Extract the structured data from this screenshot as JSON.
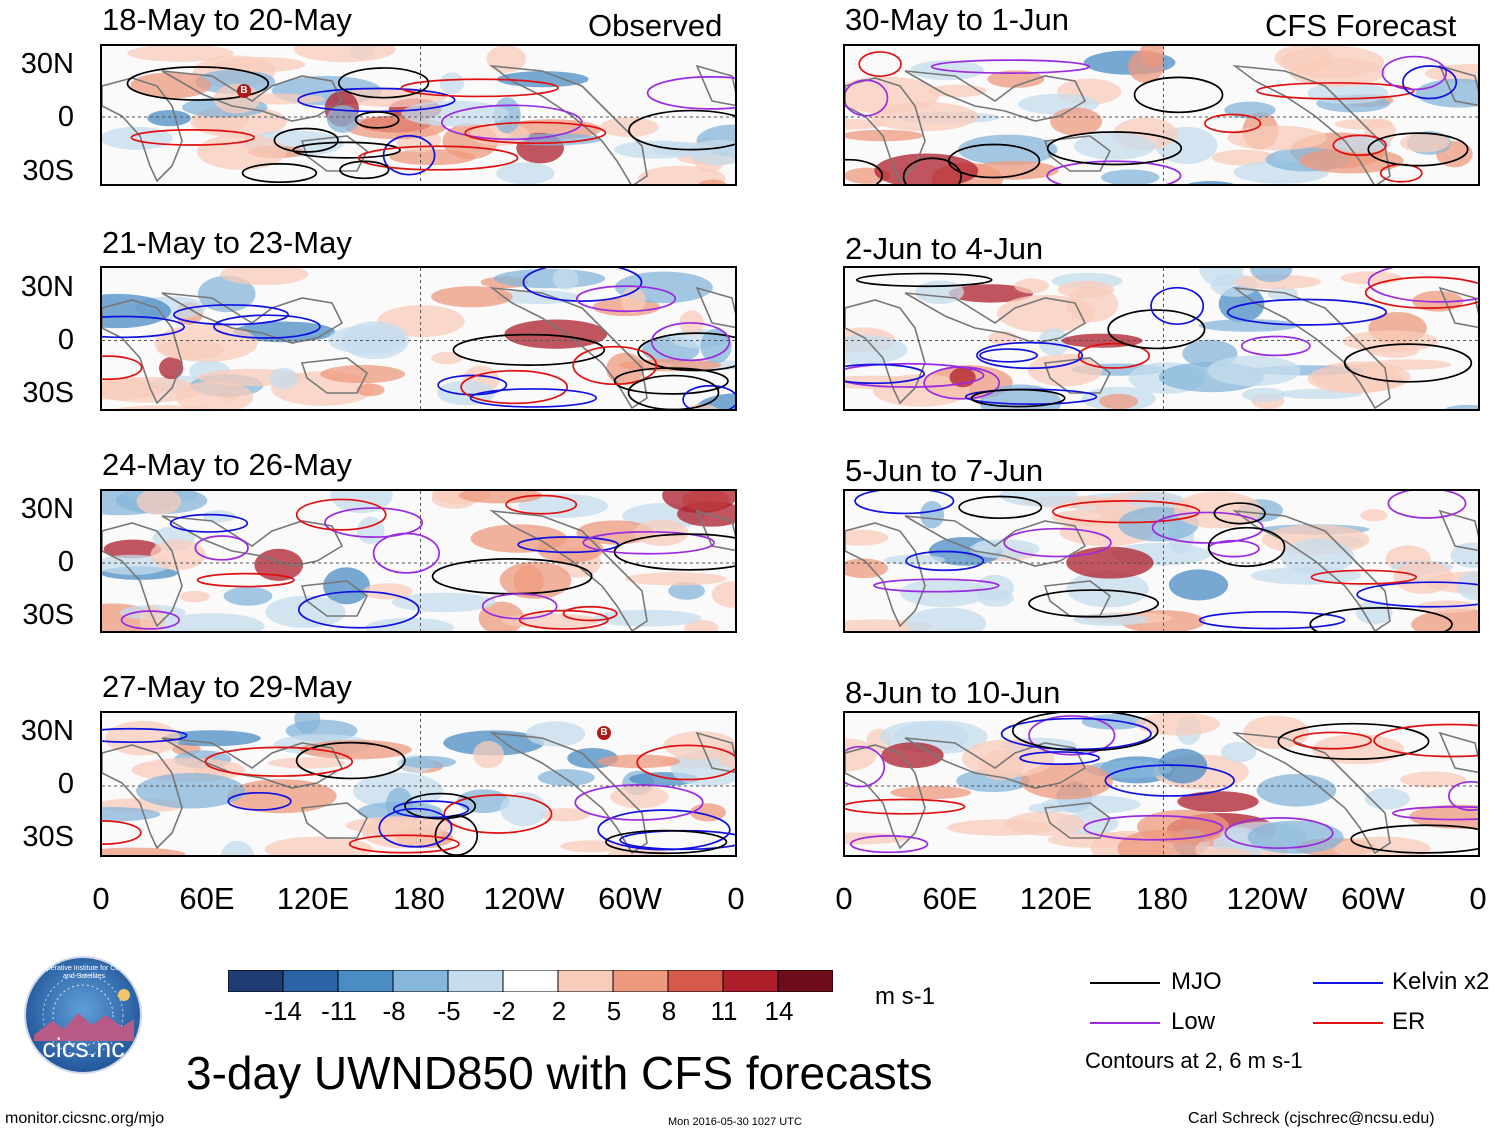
{
  "headers": {
    "left": "Observed",
    "right": "CFS Forecast"
  },
  "panels": [
    {
      "title": "18-May to 20-May"
    },
    {
      "title": "21-May to 23-May"
    },
    {
      "title": "24-May to 26-May"
    },
    {
      "title": "27-May to 29-May"
    },
    {
      "title": "30-May to 1-Jun"
    },
    {
      "title": "2-Jun to 4-Jun"
    },
    {
      "title": "5-Jun to 7-Jun"
    },
    {
      "title": "8-Jun to 10-Jun"
    }
  ],
  "lat_labels": [
    "30N",
    "0",
    "30S"
  ],
  "lon_labels": [
    "0",
    "60E",
    "120E",
    "180",
    "120W",
    "60W",
    "0"
  ],
  "colorbar": {
    "ticks": [
      "-14",
      "-11",
      "-8",
      "-5",
      "-2",
      "2",
      "5",
      "8",
      "11",
      "14"
    ],
    "colors": [
      "#1f3d73",
      "#2a64a6",
      "#4a8cc4",
      "#86b6da",
      "#c5dcee",
      "#ffffff",
      "#f8ccbb",
      "#ee9a7e",
      "#d65a4a",
      "#ad1e2b",
      "#6d0d1c"
    ],
    "units": "m s-1"
  },
  "legend": {
    "items": [
      {
        "label": "MJO",
        "color": "#000000"
      },
      {
        "label": "Kelvin x2",
        "color": "#1010e0"
      },
      {
        "label": "Low",
        "color": "#9a2be0"
      },
      {
        "label": "ER",
        "color": "#e01010"
      }
    ],
    "note": "Contours at 2, 6 m s-1"
  },
  "logo_text": "cics.nc",
  "logo_ring_text": "Cooperative Institute for Climate and Satellites",
  "main_title": "3-day UWND850 with CFS forecasts",
  "footer": {
    "left": "monitor.cicsnc.org/mjo",
    "center": "Mon 2016-05-30 1027 UTC",
    "right": "Carl Schreck (cjschrec@ncsu.edu)"
  },
  "markers": {
    "b_symbol": "B"
  }
}
